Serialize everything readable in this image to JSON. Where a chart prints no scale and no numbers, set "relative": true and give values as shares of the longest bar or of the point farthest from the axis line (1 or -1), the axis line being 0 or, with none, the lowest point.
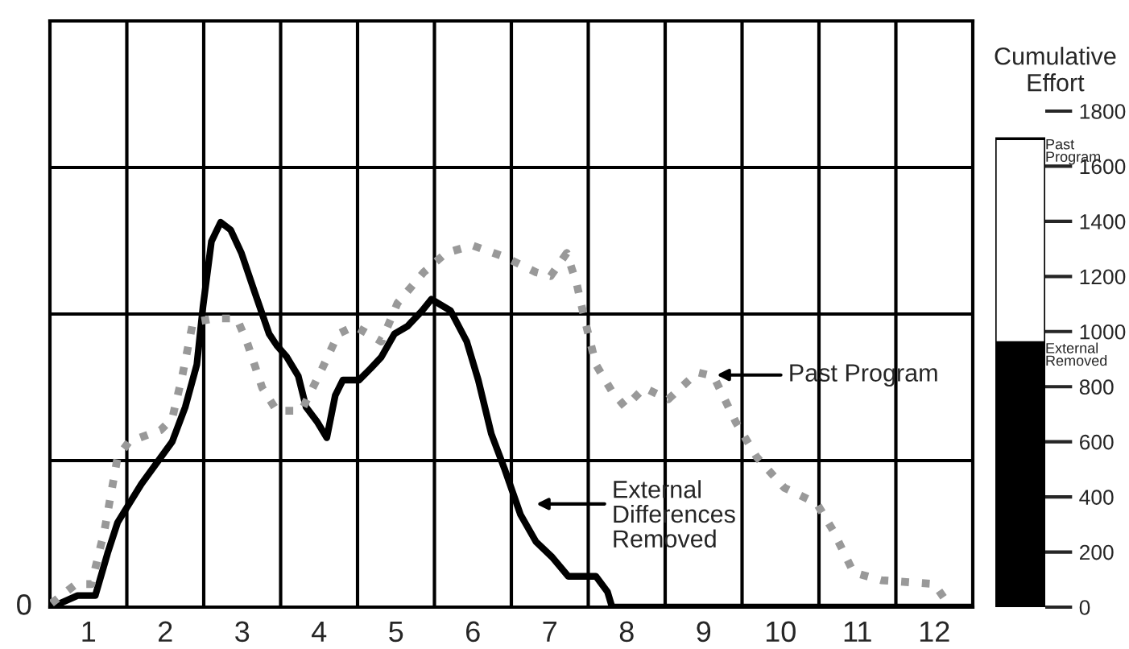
{
  "chart_data": [
    {
      "type": "line",
      "relative": true,
      "xlim": [
        0.5,
        12.5
      ],
      "xticks": [
        1,
        2,
        3,
        4,
        5,
        6,
        7,
        8,
        9,
        10,
        11,
        12
      ],
      "grid": true,
      "legend": false,
      "series": [
        {
          "color": "#000000",
          "line_style": "solid",
          "x": [
            0.52,
            0.86,
            1.09,
            1.25,
            1.38,
            1.69,
            2.09,
            2.26,
            2.41,
            2.49,
            2.6,
            2.72,
            2.85,
            2.99,
            3.16,
            3.35,
            3.45,
            3.58,
            3.73,
            3.83,
            3.98,
            4.1,
            4.21,
            4.31,
            4.52,
            4.67,
            4.81,
            4.98,
            5.15,
            5.34,
            5.46,
            5.71,
            5.92,
            6.07,
            6.24,
            6.41,
            6.62,
            6.82,
            7.03,
            7.24,
            7.39,
            7.6,
            7.75,
            7.81,
            12.5
          ],
          "values": [
            0,
            0.03,
            0.03,
            0.14,
            0.22,
            0.32,
            0.43,
            0.52,
            0.63,
            0.78,
            0.95,
            1.0,
            0.98,
            0.92,
            0.82,
            0.71,
            0.68,
            0.65,
            0.6,
            0.52,
            0.48,
            0.44,
            0.55,
            0.59,
            0.59,
            0.62,
            0.65,
            0.71,
            0.73,
            0.77,
            0.8,
            0.77,
            0.69,
            0.59,
            0.45,
            0.36,
            0.24,
            0.17,
            0.13,
            0.08,
            0.08,
            0.08,
            0.04,
            0,
            0
          ]
        },
        {
          "color": "#999999",
          "line_style": "dotted",
          "x": [
            0.52,
            0.84,
            1.04,
            1.21,
            1.38,
            1.53,
            1.94,
            2.09,
            2.22,
            2.36,
            2.64,
            2.93,
            3.06,
            3.26,
            3.45,
            3.77,
            4.04,
            4.25,
            4.46,
            4.81,
            5.02,
            5.36,
            5.65,
            5.99,
            6.41,
            6.82,
            7.01,
            7.22,
            7.35,
            7.45,
            7.6,
            7.81,
            7.98,
            8.23,
            8.54,
            8.92,
            9.13,
            9.42,
            9.69,
            10.05,
            10.47,
            10.68,
            10.95,
            11.31,
            12.0,
            12.14,
            12.21
          ],
          "values": [
            0.01,
            0.06,
            0.06,
            0.2,
            0.39,
            0.43,
            0.46,
            0.49,
            0.6,
            0.74,
            0.75,
            0.75,
            0.69,
            0.57,
            0.51,
            0.51,
            0.62,
            0.71,
            0.73,
            0.69,
            0.79,
            0.87,
            0.92,
            0.94,
            0.91,
            0.87,
            0.86,
            0.92,
            0.84,
            0.75,
            0.63,
            0.56,
            0.52,
            0.57,
            0.54,
            0.61,
            0.6,
            0.48,
            0.39,
            0.31,
            0.27,
            0.2,
            0.09,
            0.07,
            0.06,
            0.02,
            0
          ]
        }
      ],
      "annotations": [
        "0",
        "Past Program",
        "External\nDifferences\nRemoved"
      ]
    },
    {
      "type": "bar",
      "stacked": true,
      "title": "Cumulative\nEffort",
      "categories": [
        null
      ],
      "ylim": [
        0,
        1800
      ],
      "yticks": [
        0,
        200,
        400,
        600,
        800,
        1000,
        1200,
        1400,
        1600,
        1800
      ],
      "series": [
        {
          "name": "External\nRemoved",
          "color": "#000000",
          "values": [
            960
          ]
        },
        {
          "name": "Past\nProgram",
          "color": "#ffffff",
          "values": [
            740
          ]
        }
      ]
    }
  ]
}
